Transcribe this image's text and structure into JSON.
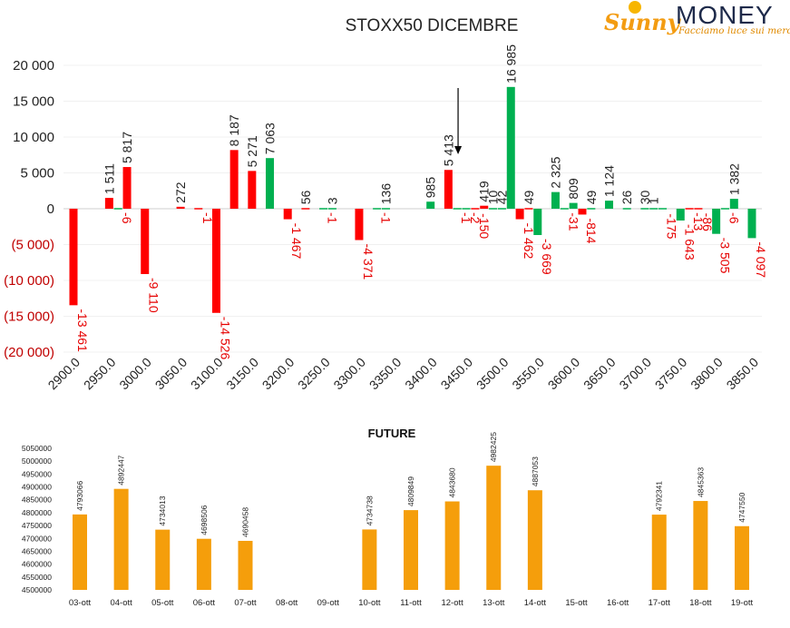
{
  "logo": {
    "sunny": "Sunny",
    "money": "MONEY",
    "tagline": "Facciamo luce sui mercati"
  },
  "colors": {
    "red": "#ff0000",
    "green": "#00b050",
    "orange": "#f59e0b",
    "neg_label": "#e60000"
  },
  "chart_data": [
    {
      "type": "bar",
      "title": "STOXX50 DICEMBRE",
      "ylim": [
        -20000,
        20000
      ],
      "yticks": [
        20000,
        15000,
        10000,
        5000,
        0,
        -5000,
        -10000,
        -15000,
        -20000
      ],
      "ytick_labels": [
        "20 000",
        "15 000",
        "10 000",
        "5 000",
        "0",
        "(5 000)",
        "(10 000)",
        "(15 000)",
        "(20 000)"
      ],
      "categories": [
        "2900.0",
        "2950.0",
        "3000.0",
        "3050.0",
        "3100.0",
        "3150.0",
        "3200.0",
        "3250.0",
        "3300.0",
        "3350.0",
        "3400.0",
        "3450.0",
        "3500.0",
        "3550.0",
        "3600.0",
        "3650.0",
        "3700.0",
        "3750.0",
        "3800.0",
        "3850.0"
      ],
      "x_min": 2900,
      "x_step": 25,
      "arrow_strike": 3450,
      "bars": [
        {
          "strike": 2900,
          "value": -13461,
          "label": "-13 461",
          "color": "red"
        },
        {
          "strike": 2950,
          "value": 1511,
          "label": "1 511",
          "color": "red"
        },
        {
          "strike": 2962.5,
          "value": -6,
          "label": "-6",
          "color": "green"
        },
        {
          "strike": 2975,
          "value": 5817,
          "label": "5 817",
          "color": "red"
        },
        {
          "strike": 3000,
          "value": -9110,
          "label": "-9 110",
          "color": "red"
        },
        {
          "strike": 3050,
          "value": 272,
          "label": "272",
          "color": "red"
        },
        {
          "strike": 3075,
          "value": -1,
          "label": "-1",
          "color": "red"
        },
        {
          "strike": 3100,
          "value": -14526,
          "label": "-14 526",
          "color": "red"
        },
        {
          "strike": 3125,
          "value": 8187,
          "label": "8 187",
          "color": "red"
        },
        {
          "strike": 3150,
          "value": 5271,
          "label": "5 271",
          "color": "red"
        },
        {
          "strike": 3175,
          "value": 7063,
          "label": "7 063",
          "color": "green"
        },
        {
          "strike": 3200,
          "value": -1467,
          "label": "-1 467",
          "color": "red"
        },
        {
          "strike": 3225,
          "value": 56,
          "label": "56",
          "color": "red"
        },
        {
          "strike": 3250,
          "value": -1,
          "label": "-1",
          "color": "green"
        },
        {
          "strike": 3262.5,
          "value": 3,
          "label": "3",
          "color": "green"
        },
        {
          "strike": 3300,
          "value": -4371,
          "label": "-4 371",
          "color": "red"
        },
        {
          "strike": 3325,
          "value": -1,
          "label": "-1",
          "color": "green"
        },
        {
          "strike": 3337.5,
          "value": 136,
          "label": "136",
          "color": "green"
        },
        {
          "strike": 3400,
          "value": 985,
          "label": "985",
          "color": "green"
        },
        {
          "strike": 3425,
          "value": 5413,
          "label": "5 413",
          "color": "red"
        },
        {
          "strike": 3437.5,
          "value": -1,
          "label": "-1",
          "color": "green"
        },
        {
          "strike": 3450,
          "value": -2,
          "label": "-2",
          "color": "green"
        },
        {
          "strike": 3462.5,
          "value": -150,
          "label": "-150",
          "color": "red"
        },
        {
          "strike": 3475,
          "value": 419,
          "label": "419",
          "color": "red"
        },
        {
          "strike": 3487.5,
          "value": 10,
          "label": "10",
          "color": "green"
        },
        {
          "strike": 3500,
          "value": 42,
          "label": "42",
          "color": "green"
        },
        {
          "strike": 3512.5,
          "value": 16985,
          "label": "16 985",
          "color": "green"
        },
        {
          "strike": 3525,
          "value": -1462,
          "label": "-1 462",
          "color": "red"
        },
        {
          "strike": 3537.5,
          "value": 49,
          "label": "49",
          "color": "red"
        },
        {
          "strike": 3550,
          "value": -3669,
          "label": "-3 669",
          "color": "green"
        },
        {
          "strike": 3575,
          "value": 2325,
          "label": "2 325",
          "color": "green"
        },
        {
          "strike": 3587.5,
          "value": -31,
          "label": "-31",
          "color": "green"
        },
        {
          "strike": 3600,
          "value": 809,
          "label": "809",
          "color": "green"
        },
        {
          "strike": 3612.5,
          "value": -814,
          "label": "-814",
          "color": "red"
        },
        {
          "strike": 3625,
          "value": 49,
          "label": "49",
          "color": "green"
        },
        {
          "strike": 3650,
          "value": 1124,
          "label": "1 124",
          "color": "green"
        },
        {
          "strike": 3675,
          "value": 26,
          "label": "26",
          "color": "green"
        },
        {
          "strike": 3700,
          "value": 30,
          "label": "30",
          "color": "green"
        },
        {
          "strike": 3712.5,
          "value": 1,
          "label": "1",
          "color": "green"
        },
        {
          "strike": 3725,
          "value": -175,
          "label": "-175",
          "color": "green"
        },
        {
          "strike": 3750,
          "value": -1643,
          "label": "-1 643",
          "color": "green"
        },
        {
          "strike": 3762.5,
          "value": -13,
          "label": "-13",
          "color": "red"
        },
        {
          "strike": 3775,
          "value": -86,
          "label": "-86",
          "color": "red"
        },
        {
          "strike": 3800,
          "value": -3505,
          "label": "-3 505",
          "color": "green"
        },
        {
          "strike": 3812.5,
          "value": -6,
          "label": "-6",
          "color": "green"
        },
        {
          "strike": 3825,
          "value": 1382,
          "label": "1 382",
          "color": "green"
        },
        {
          "strike": 3850,
          "value": -4097,
          "label": "-4 097",
          "color": "green"
        }
      ]
    },
    {
      "type": "bar",
      "title": "FUTURE",
      "ylim": [
        4500000,
        5050000
      ],
      "ytick_step": 50000,
      "categories": [
        "03-ott",
        "04-ott",
        "05-ott",
        "06-ott",
        "07-ott",
        "08-ott",
        "09-ott",
        "10-ott",
        "11-ott",
        "12-ott",
        "13-ott",
        "14-ott",
        "15-ott",
        "16-ott",
        "17-ott",
        "18-ott",
        "19-ott"
      ],
      "values": [
        4793066,
        4892447,
        4734013,
        4698506,
        4690458,
        null,
        null,
        4734738,
        4809849,
        4843680,
        4982425,
        4887053,
        null,
        null,
        4792341,
        4845363,
        4747550
      ],
      "color": "orange"
    }
  ]
}
